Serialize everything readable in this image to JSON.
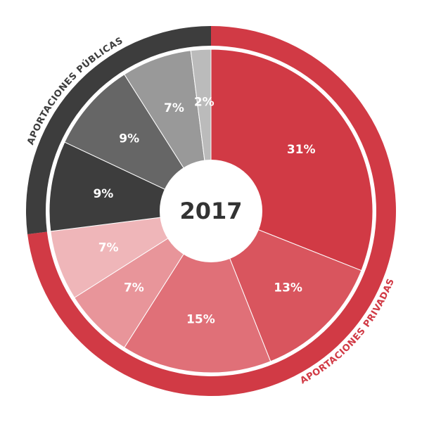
{
  "chart_data": {
    "type": "donut",
    "title": "2017",
    "series": [
      {
        "name": "APORTACIONES PRIVADAS",
        "color": "#d13a45",
        "values": [
          31,
          13,
          15,
          7,
          7
        ],
        "value_labels": [
          "31%",
          "13%",
          "15%",
          "7%",
          "7%"
        ],
        "colors": [
          "#d13a45",
          "#d9555e",
          "#e07078",
          "#e8959a",
          "#efb6b9"
        ]
      },
      {
        "name": "APORTACIONES PÚBLICAS",
        "color": "#3d3d3d",
        "values": [
          9,
          9,
          7,
          2
        ],
        "value_labels": [
          "9%",
          "9%",
          "7%",
          "2%"
        ],
        "colors": [
          "#3d3d3d",
          "#666666",
          "#999999",
          "#bbbbbb"
        ]
      }
    ]
  }
}
